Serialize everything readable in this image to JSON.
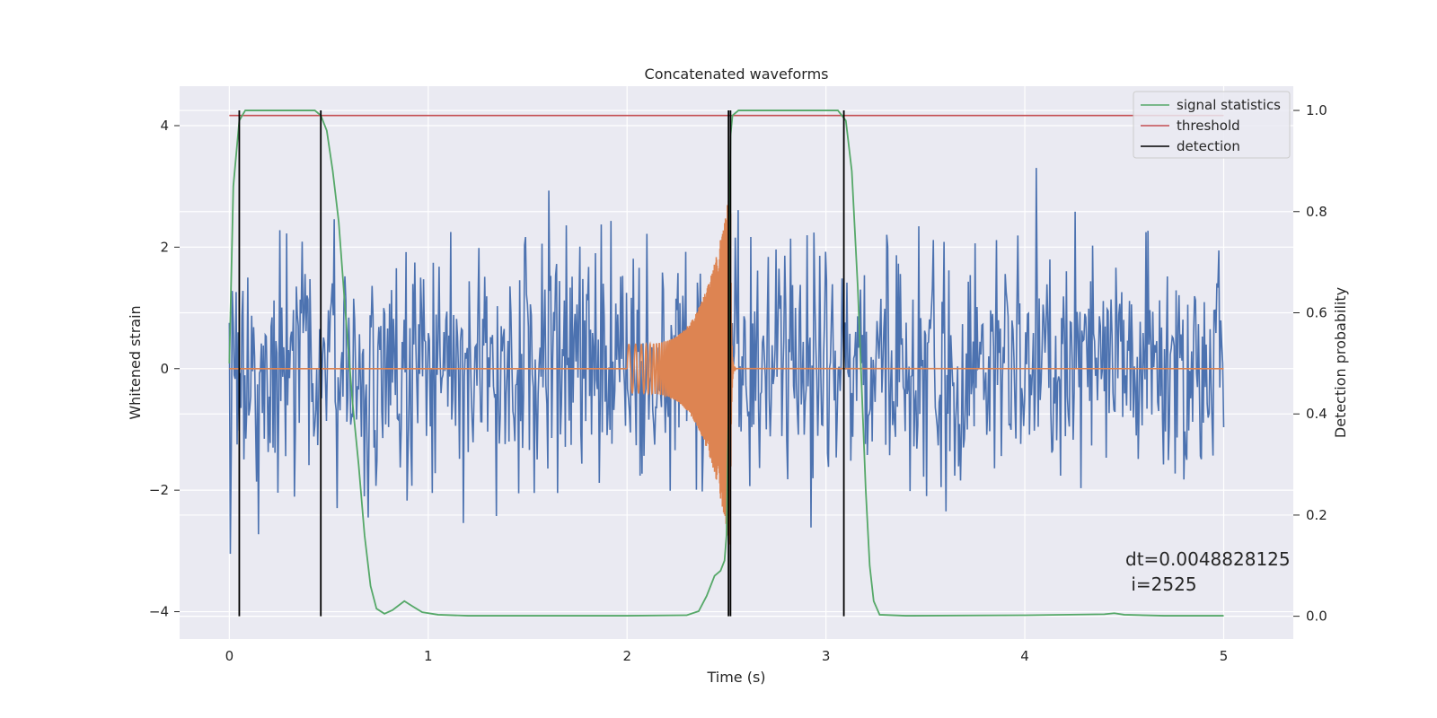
{
  "chart_data": {
    "type": "line",
    "title": "Concatenated waveforms",
    "xlabel": "Time (s)",
    "ylabel": "Whitened strain",
    "y2label": "Detection probability",
    "xlim": [
      -0.25,
      5.35
    ],
    "ylim": [
      -4.45,
      4.65
    ],
    "y2lim": [
      -0.045,
      1.048
    ],
    "x_ticks": [
      0,
      1,
      2,
      3,
      4,
      5
    ],
    "y_ticks": [
      -4,
      -2,
      0,
      2,
      4
    ],
    "y2_ticks": [
      0.0,
      0.2,
      0.4,
      0.6,
      0.8,
      1.0
    ],
    "x_tick_labels": [
      "0",
      "1",
      "2",
      "3",
      "4",
      "5"
    ],
    "y_tick_labels": [
      "−4",
      "−2",
      "0",
      "2",
      "4"
    ],
    "y2_tick_labels": [
      "0.0",
      "0.2",
      "0.4",
      "0.6",
      "0.8",
      "1.0"
    ],
    "grid": true,
    "legend_position": "top-right",
    "colors": {
      "strain": "#4c72b0",
      "waveform": "#dd8452",
      "signal_statistics": "#55a868",
      "threshold": "#c44e52",
      "detection": "#000000",
      "background": "#eaeaf2"
    },
    "series": [
      {
        "name": "",
        "axis": "left",
        "description_kind": "whitened strain noise",
        "x_range": [
          0,
          5
        ],
        "amplitude_envelope": 3.5
      },
      {
        "name": "",
        "axis": "left",
        "description_kind": "injected chirp",
        "x_range": [
          2.0,
          2.55
        ],
        "start_amplitude": 0.4,
        "peak_amplitude": 3.0,
        "peak_time": 2.52
      },
      {
        "name": "signal statistics",
        "axis": "right",
        "points": [
          [
            0.0,
            0.5
          ],
          [
            0.02,
            0.85
          ],
          [
            0.05,
            0.98
          ],
          [
            0.08,
            1.0
          ],
          [
            0.15,
            1.0
          ],
          [
            0.3,
            1.0
          ],
          [
            0.43,
            1.0
          ],
          [
            0.46,
            0.99
          ],
          [
            0.49,
            0.96
          ],
          [
            0.52,
            0.88
          ],
          [
            0.55,
            0.78
          ],
          [
            0.58,
            0.62
          ],
          [
            0.6,
            0.52
          ],
          [
            0.62,
            0.42
          ],
          [
            0.65,
            0.3
          ],
          [
            0.68,
            0.16
          ],
          [
            0.71,
            0.06
          ],
          [
            0.74,
            0.015
          ],
          [
            0.78,
            0.005
          ],
          [
            0.82,
            0.012
          ],
          [
            0.88,
            0.03
          ],
          [
            0.92,
            0.02
          ],
          [
            0.97,
            0.008
          ],
          [
            1.05,
            0.003
          ],
          [
            1.2,
            0.001
          ],
          [
            1.5,
            0.001
          ],
          [
            2.0,
            0.001
          ],
          [
            2.3,
            0.002
          ],
          [
            2.36,
            0.01
          ],
          [
            2.4,
            0.04
          ],
          [
            2.44,
            0.08
          ],
          [
            2.47,
            0.09
          ],
          [
            2.49,
            0.11
          ],
          [
            2.5,
            0.16
          ],
          [
            2.51,
            0.4
          ],
          [
            2.515,
            0.75
          ],
          [
            2.52,
            0.95
          ],
          [
            2.53,
            0.99
          ],
          [
            2.56,
            1.0
          ],
          [
            2.7,
            1.0
          ],
          [
            3.0,
            1.0
          ],
          [
            3.06,
            1.0
          ],
          [
            3.1,
            0.98
          ],
          [
            3.13,
            0.88
          ],
          [
            3.16,
            0.65
          ],
          [
            3.18,
            0.45
          ],
          [
            3.2,
            0.25
          ],
          [
            3.22,
            0.1
          ],
          [
            3.24,
            0.03
          ],
          [
            3.27,
            0.003
          ],
          [
            3.4,
            0.001
          ],
          [
            4.0,
            0.002
          ],
          [
            4.4,
            0.004
          ],
          [
            4.45,
            0.006
          ],
          [
            4.5,
            0.003
          ],
          [
            4.7,
            0.001
          ],
          [
            5.0,
            0.001
          ]
        ]
      },
      {
        "name": "threshold",
        "axis": "right",
        "points": [
          [
            0,
            0.99
          ],
          [
            5,
            0.99
          ]
        ]
      },
      {
        "name": "detection",
        "axis": "right",
        "vertical_lines_x": [
          0.05,
          0.46,
          2.51,
          2.52,
          3.09
        ]
      }
    ],
    "annotation": {
      "line1": "dt=0.0048828125",
      "line2": " i=2525"
    }
  }
}
